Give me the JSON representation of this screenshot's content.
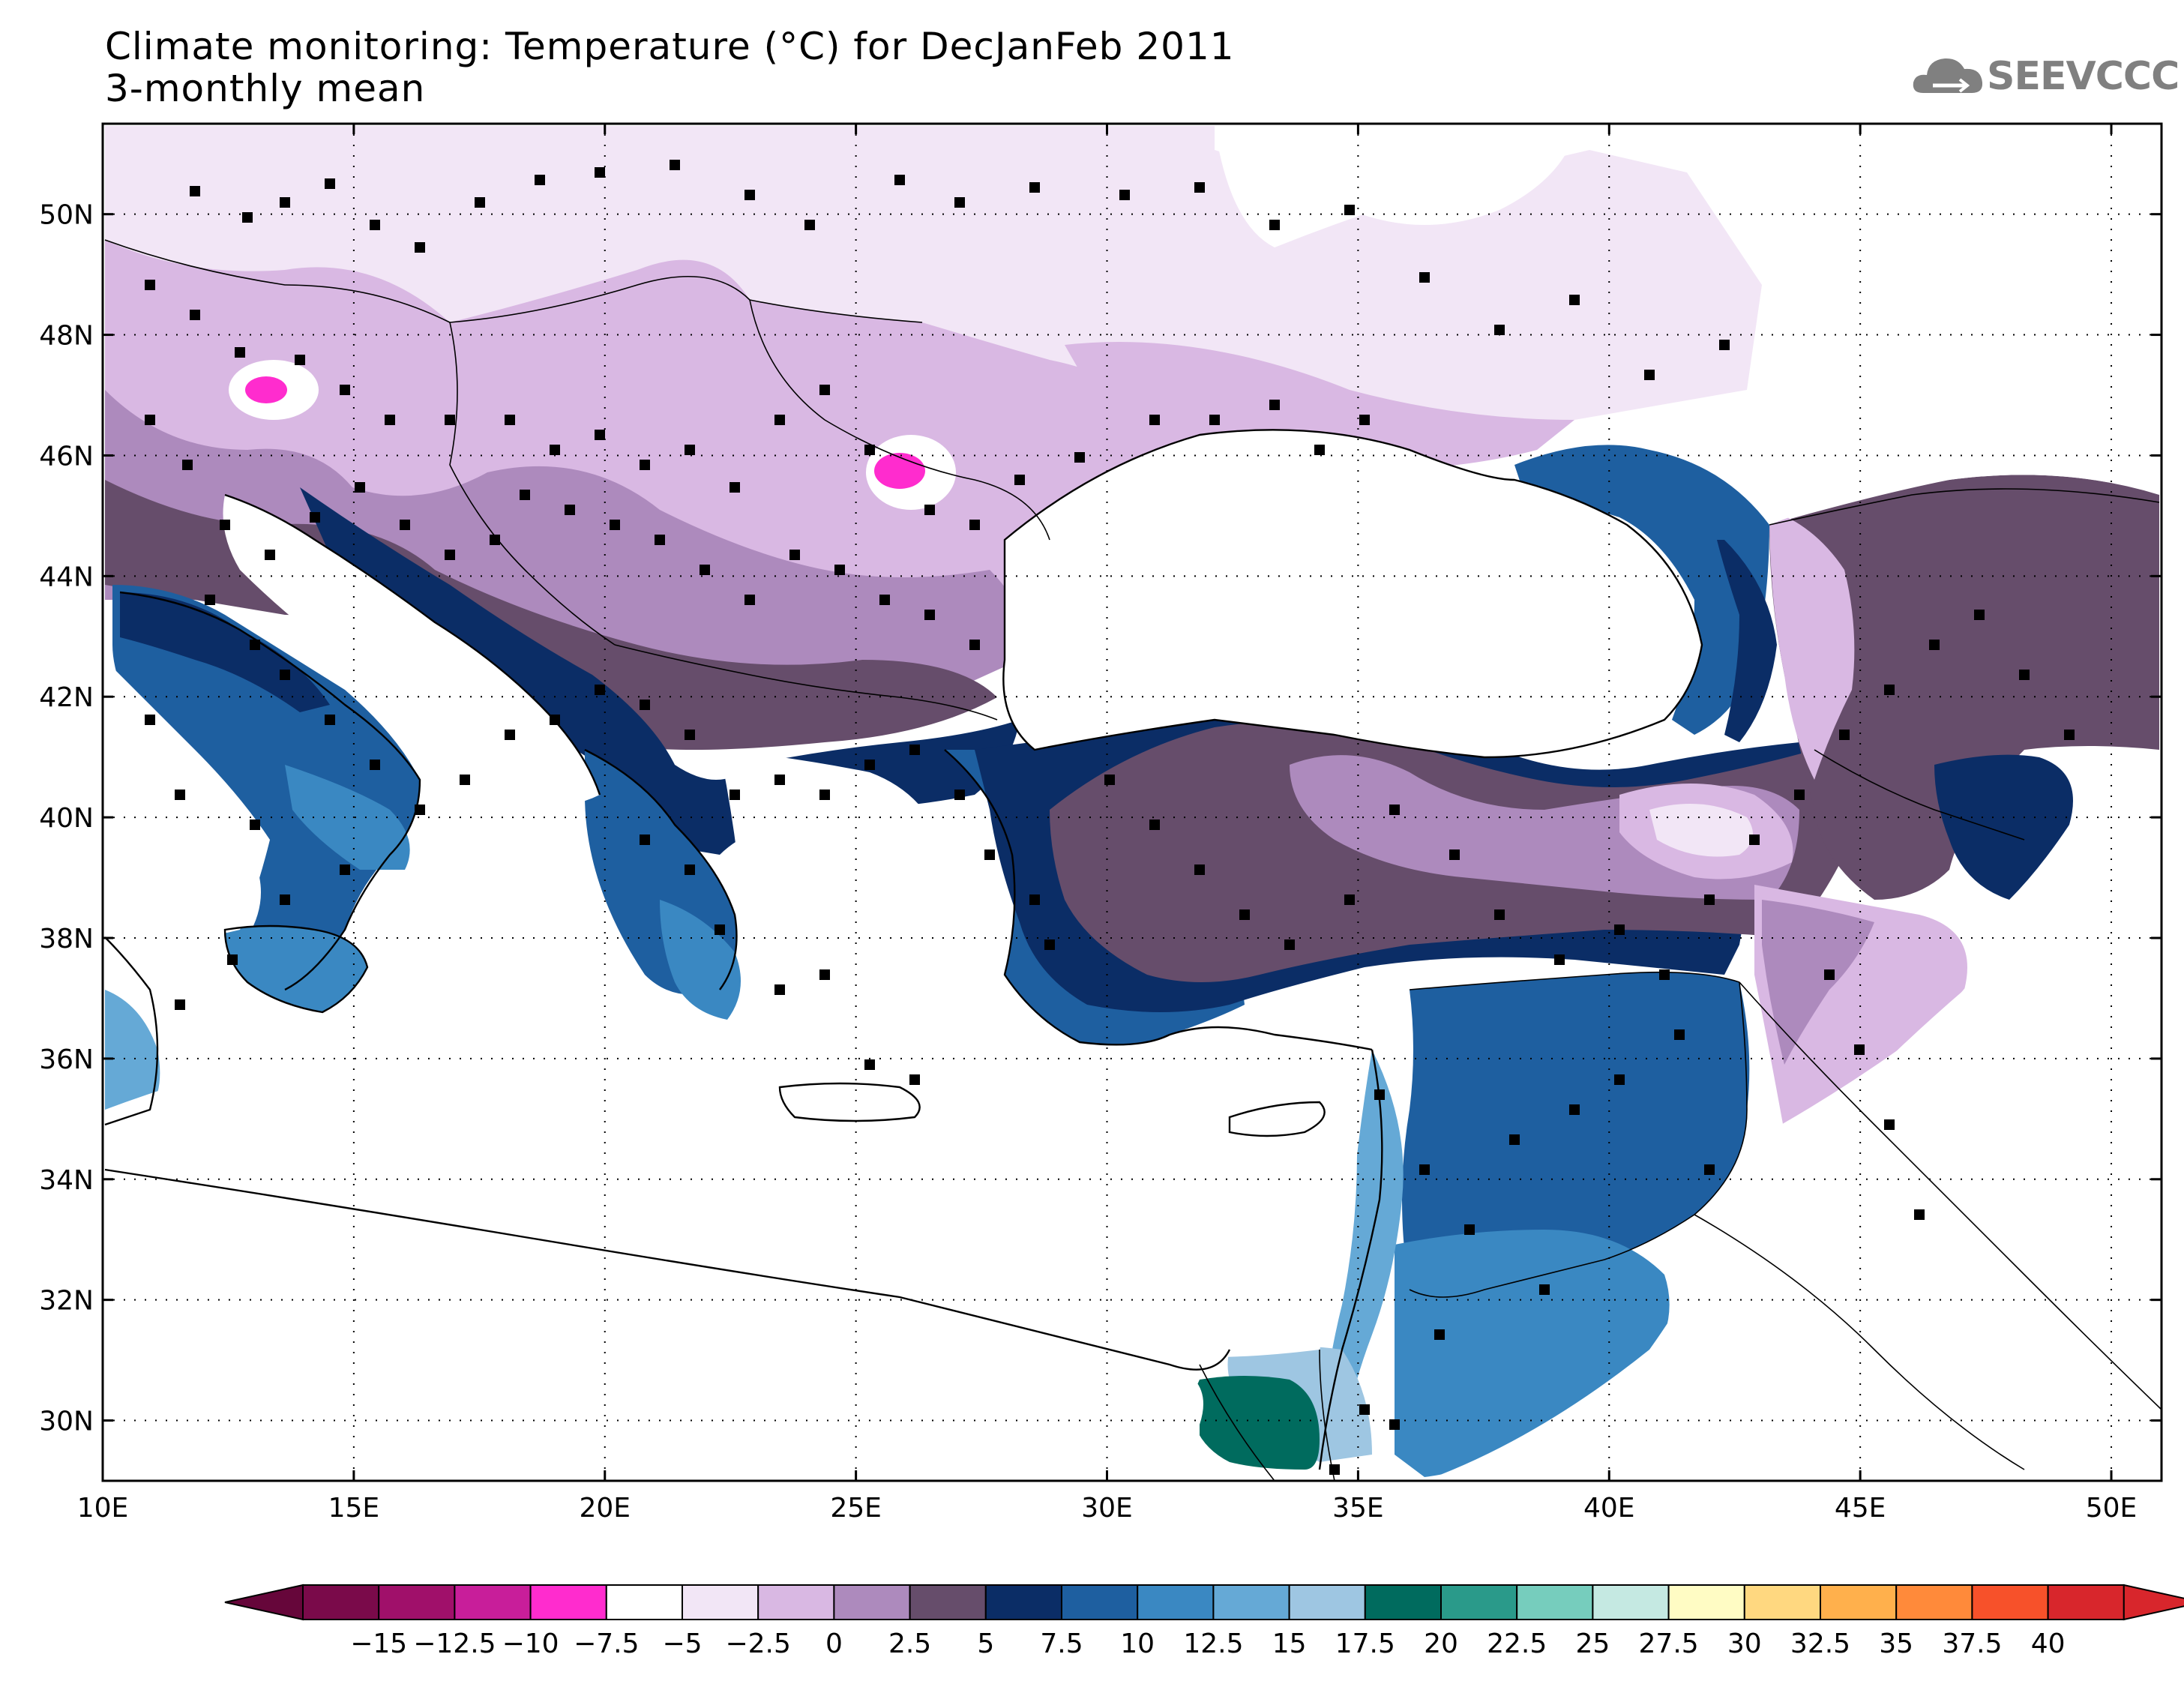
{
  "header": {
    "title_line1": "Climate monitoring: Temperature (°C) for DecJanFeb 2011",
    "title_line2": "3-monthly mean",
    "logo_text": "SEEVCCC"
  },
  "map": {
    "lon_range": [
      10,
      51
    ],
    "lat_range": [
      29,
      51.5
    ],
    "lon_ticks": [
      {
        "v": 10,
        "label": "10E"
      },
      {
        "v": 15,
        "label": "15E"
      },
      {
        "v": 20,
        "label": "20E"
      },
      {
        "v": 25,
        "label": "25E"
      },
      {
        "v": 30,
        "label": "30E"
      },
      {
        "v": 35,
        "label": "35E"
      },
      {
        "v": 40,
        "label": "40E"
      },
      {
        "v": 45,
        "label": "45E"
      },
      {
        "v": 50,
        "label": "50E"
      }
    ],
    "lat_ticks": [
      {
        "v": 30,
        "label": "30N"
      },
      {
        "v": 32,
        "label": "32N"
      },
      {
        "v": 34,
        "label": "34N"
      },
      {
        "v": 36,
        "label": "36N"
      },
      {
        "v": 38,
        "label": "38N"
      },
      {
        "v": 40,
        "label": "40N"
      },
      {
        "v": 42,
        "label": "42N"
      },
      {
        "v": 44,
        "label": "44N"
      },
      {
        "v": 46,
        "label": "46N"
      },
      {
        "v": 48,
        "label": "48N"
      },
      {
        "v": 50,
        "label": "50N"
      }
    ],
    "grid": "dotted"
  },
  "colorbar": {
    "labels": [
      "-15",
      "-12.5",
      "-10",
      "-7.5",
      "-5",
      "-2.5",
      "0",
      "2.5",
      "5",
      "7.5",
      "10",
      "12.5",
      "15",
      "17.5",
      "20",
      "22.5",
      "25",
      "27.5",
      "30",
      "32.5",
      "35",
      "37.5",
      "40"
    ],
    "colors": [
      "#7a0a4a",
      "#a0106a",
      "#c81e9a",
      "#ff2cce",
      "#ffffff",
      "#f2e6f6",
      "#d9b8e3",
      "#ad8abd",
      "#664d6b",
      "#0b2d66",
      "#1e5fa0",
      "#3a88c2",
      "#65a9d6",
      "#9ec6e2",
      "#006b5e",
      "#2a9a8a",
      "#76cdbd",
      "#c5e9e2",
      "#fffcc4",
      "#ffd880",
      "#ffb04c",
      "#ff8a3a",
      "#f7512a",
      "#d8262c"
    ],
    "under_color": "#66063a",
    "over_color": "#d8262c"
  }
}
